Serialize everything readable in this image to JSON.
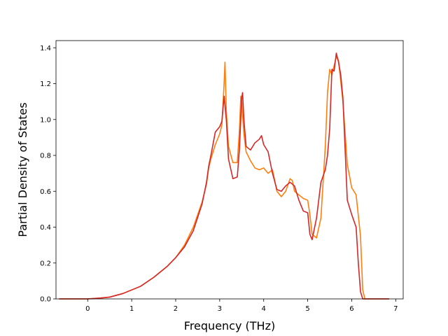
{
  "chart_data": {
    "type": "line",
    "title": "",
    "xlabel": "Frequency (THz)",
    "ylabel": "Partial Density of States",
    "xlim": [
      -0.72,
      7.17
    ],
    "ylim": [
      0.0,
      1.44
    ],
    "xticks": [
      0,
      1,
      2,
      3,
      4,
      5,
      6,
      7
    ],
    "xtick_labels": [
      "0",
      "1",
      "2",
      "3",
      "4",
      "5",
      "6",
      "7"
    ],
    "yticks": [
      0.0,
      0.2,
      0.4,
      0.6,
      0.8,
      1.0,
      1.2,
      1.4
    ],
    "ytick_labels": [
      "0.0",
      "0.2",
      "0.4",
      "0.6",
      "0.8",
      "1.0",
      "1.2",
      "1.4"
    ],
    "grid": false,
    "legend": "none",
    "series": [
      {
        "color": "#ff7f0e",
        "x": [
          -0.65,
          0.0,
          0.3,
          0.5,
          0.8,
          1.0,
          1.2,
          1.5,
          1.8,
          2.0,
          2.2,
          2.4,
          2.6,
          2.7,
          2.75,
          2.8,
          2.9,
          3.0,
          3.05,
          3.1,
          3.12,
          3.15,
          3.2,
          3.3,
          3.4,
          3.45,
          3.48,
          3.5,
          3.55,
          3.6,
          3.7,
          3.8,
          3.9,
          4.0,
          4.1,
          4.2,
          4.3,
          4.4,
          4.5,
          4.6,
          4.65,
          4.7,
          4.8,
          4.9,
          5.0,
          5.05,
          5.1,
          5.2,
          5.3,
          5.4,
          5.45,
          5.5,
          5.55,
          5.6,
          5.65,
          5.7,
          5.8,
          5.9,
          6.0,
          6.1,
          6.2,
          6.25,
          6.3,
          6.85
        ],
        "y": [
          0.0,
          0.0,
          0.005,
          0.01,
          0.03,
          0.05,
          0.07,
          0.12,
          0.18,
          0.23,
          0.3,
          0.4,
          0.54,
          0.64,
          0.73,
          0.78,
          0.86,
          0.92,
          0.97,
          1.2,
          1.32,
          1.05,
          0.85,
          0.76,
          0.76,
          0.95,
          1.13,
          1.1,
          0.92,
          0.82,
          0.77,
          0.73,
          0.72,
          0.73,
          0.7,
          0.72,
          0.6,
          0.57,
          0.6,
          0.67,
          0.66,
          0.6,
          0.58,
          0.56,
          0.55,
          0.47,
          0.36,
          0.34,
          0.45,
          0.85,
          1.15,
          1.28,
          1.25,
          1.3,
          1.35,
          1.33,
          1.1,
          0.75,
          0.62,
          0.58,
          0.35,
          0.05,
          0.0,
          0.0
        ]
      },
      {
        "color": "#d62728",
        "x": [
          -0.65,
          0.0,
          0.3,
          0.5,
          0.8,
          1.0,
          1.2,
          1.5,
          1.8,
          2.0,
          2.2,
          2.4,
          2.6,
          2.7,
          2.75,
          2.8,
          2.9,
          3.0,
          3.05,
          3.1,
          3.15,
          3.2,
          3.3,
          3.4,
          3.45,
          3.5,
          3.52,
          3.55,
          3.6,
          3.7,
          3.8,
          3.9,
          3.95,
          4.0,
          4.1,
          4.2,
          4.3,
          4.4,
          4.5,
          4.6,
          4.7,
          4.8,
          4.9,
          5.0,
          5.05,
          5.1,
          5.2,
          5.3,
          5.4,
          5.45,
          5.5,
          5.55,
          5.6,
          5.65,
          5.7,
          5.75,
          5.8,
          5.9,
          6.0,
          6.1,
          6.15,
          6.2,
          6.25,
          6.85
        ],
        "y": [
          0.0,
          0.0,
          0.005,
          0.01,
          0.03,
          0.05,
          0.07,
          0.12,
          0.18,
          0.23,
          0.29,
          0.38,
          0.53,
          0.65,
          0.74,
          0.8,
          0.93,
          0.96,
          0.99,
          1.13,
          1.0,
          0.78,
          0.67,
          0.68,
          0.84,
          1.12,
          1.15,
          1.0,
          0.85,
          0.83,
          0.87,
          0.89,
          0.91,
          0.86,
          0.82,
          0.7,
          0.61,
          0.6,
          0.63,
          0.65,
          0.63,
          0.55,
          0.49,
          0.48,
          0.36,
          0.33,
          0.45,
          0.65,
          0.72,
          0.8,
          0.95,
          1.28,
          1.27,
          1.37,
          1.32,
          1.25,
          1.12,
          0.55,
          0.47,
          0.4,
          0.2,
          0.04,
          0.0,
          0.0
        ]
      }
    ]
  }
}
